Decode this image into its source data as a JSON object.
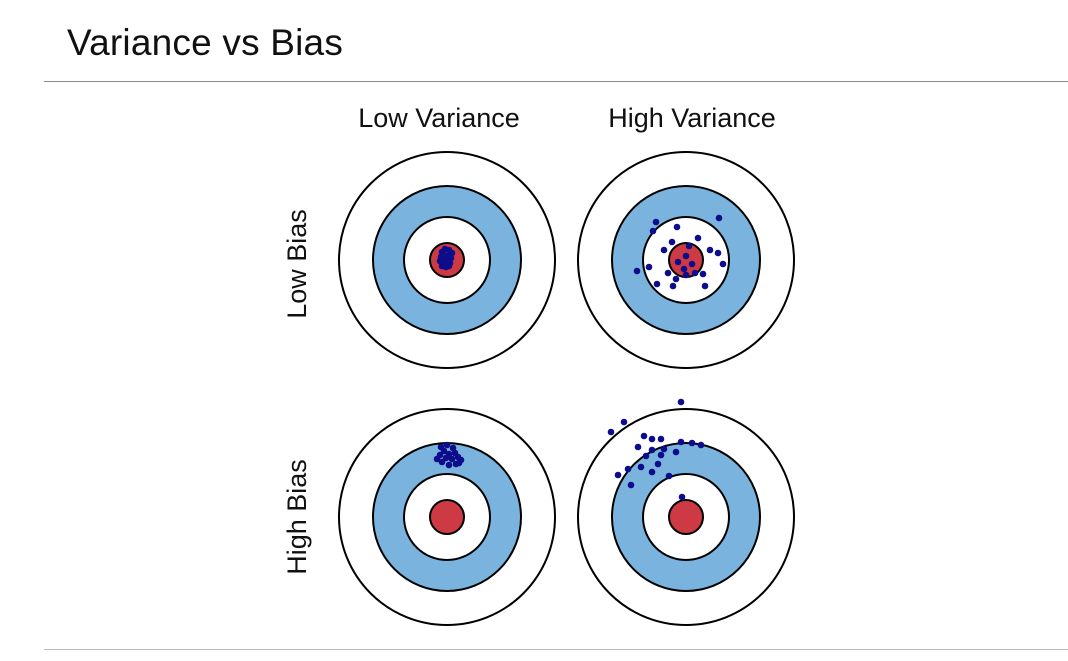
{
  "slide": {
    "title": "Variance vs Bias"
  },
  "diagram": {
    "column_labels": [
      "Low Variance",
      "High Variance"
    ],
    "row_labels": [
      "Low Bias",
      "High Bias"
    ],
    "colors": {
      "ring_outline": "#000000",
      "ring_white": "#ffffff",
      "ring_blue": "#7ab3dd",
      "bullseye_red": "#cd3a43",
      "dot_fill": "#0d0d8c"
    },
    "targets": [
      {
        "name": "target-low-bias-low-variance",
        "points": [
          [
            -5,
            -8
          ],
          [
            -2,
            -11
          ],
          [
            2,
            -10
          ],
          [
            5,
            -7
          ],
          [
            -6,
            -3
          ],
          [
            -3,
            -5
          ],
          [
            1,
            -4
          ],
          [
            4,
            -2
          ],
          [
            -7,
            1
          ],
          [
            -4,
            2
          ],
          [
            0,
            1
          ],
          [
            3,
            3
          ],
          [
            -5,
            6
          ],
          [
            -1,
            7
          ],
          [
            2,
            6
          ],
          [
            -3,
            -1
          ]
        ]
      },
      {
        "name": "target-low-bias-high-variance",
        "points": [
          [
            -30,
            -38
          ],
          [
            33,
            -42
          ],
          [
            -9,
            -33
          ],
          [
            -33,
            -29
          ],
          [
            -14,
            -18
          ],
          [
            12,
            -22
          ],
          [
            -22,
            -10
          ],
          [
            3,
            -14
          ],
          [
            24,
            -10
          ],
          [
            0,
            -4
          ],
          [
            -8,
            2
          ],
          [
            32,
            -7
          ],
          [
            -49,
            11
          ],
          [
            -37,
            7
          ],
          [
            -18,
            13
          ],
          [
            0,
            15
          ],
          [
            -10,
            19
          ],
          [
            17,
            14
          ],
          [
            -2,
            9
          ],
          [
            37,
            4
          ],
          [
            -29,
            24
          ],
          [
            -13,
            26
          ],
          [
            9,
            13
          ],
          [
            19,
            26
          ],
          [
            6,
            4
          ]
        ]
      },
      {
        "name": "target-high-bias-low-variance",
        "points": [
          [
            -6,
            -70
          ],
          [
            0,
            -72
          ],
          [
            6,
            -69
          ],
          [
            -3,
            -66
          ],
          [
            2,
            -63
          ],
          [
            8,
            -64
          ],
          [
            -7,
            -62
          ],
          [
            5,
            -58
          ],
          [
            11,
            -60
          ],
          [
            -1,
            -59
          ],
          [
            12,
            -54
          ],
          [
            -5,
            -55
          ],
          [
            2,
            -52
          ],
          [
            9,
            -53
          ],
          [
            -10,
            -58
          ],
          [
            14,
            -57
          ]
        ]
      },
      {
        "name": "target-high-bias-high-variance",
        "points": [
          [
            -5,
            -115
          ],
          [
            -62,
            -95
          ],
          [
            -75,
            -85
          ],
          [
            -42,
            -81
          ],
          [
            -34,
            -78
          ],
          [
            -25,
            -78
          ],
          [
            -48,
            -70
          ],
          [
            -34,
            -67
          ],
          [
            -22,
            -68
          ],
          [
            -5,
            -75
          ],
          [
            6,
            -74
          ],
          [
            15,
            -72
          ],
          [
            -40,
            -61
          ],
          [
            -25,
            -62
          ],
          [
            -10,
            -65
          ],
          [
            -28,
            -53
          ],
          [
            -58,
            -48
          ],
          [
            -45,
            -50
          ],
          [
            -34,
            -45
          ],
          [
            -68,
            -42
          ],
          [
            -17,
            -41
          ],
          [
            -4,
            -20
          ],
          [
            -55,
            -32
          ]
        ]
      }
    ]
  }
}
